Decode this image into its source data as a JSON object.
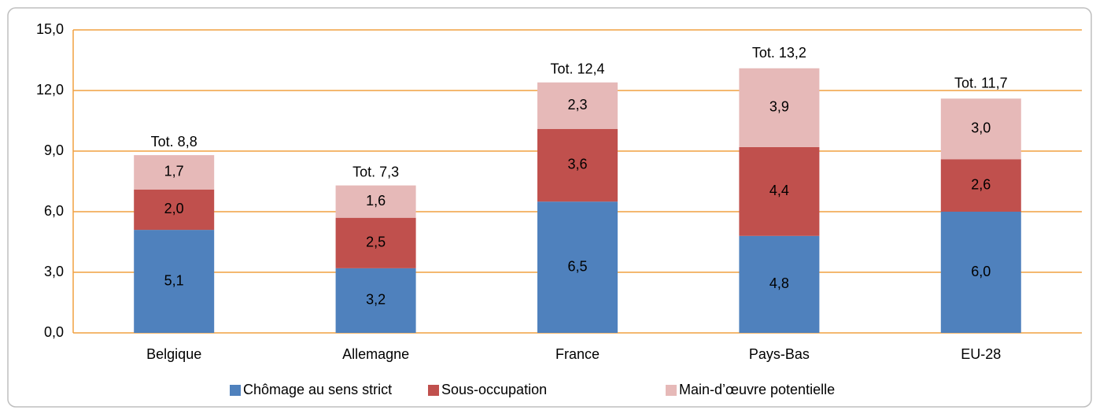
{
  "chart_data": {
    "type": "stacked_bar",
    "categories": [
      "Belgique",
      "Allemagne",
      "France",
      "Pays-Bas",
      "EU-28"
    ],
    "series": [
      {
        "name": "Chômage au sens strict",
        "color": "#4f81bd",
        "values": [
          5.1,
          3.2,
          6.5,
          4.8,
          6.0
        ],
        "value_labels": [
          "5,1",
          "3,2",
          "6,5",
          "4,8",
          "6,0"
        ]
      },
      {
        "name": "Sous-occupation",
        "color": "#c0504d",
        "values": [
          2.0,
          2.5,
          3.6,
          4.4,
          2.6
        ],
        "value_labels": [
          "2,0",
          "2,5",
          "3,6",
          "4,4",
          "2,6"
        ]
      },
      {
        "name": "Main-d’œuvre potentielle",
        "color": "#e6b9b8",
        "values": [
          1.7,
          1.6,
          2.3,
          3.9,
          3.0
        ],
        "value_labels": [
          "1,7",
          "1,6",
          "2,3",
          "3,9",
          "3,0"
        ]
      }
    ],
    "totals": [
      {
        "value": 8.8,
        "label": "Tot. 8,8"
      },
      {
        "value": 7.3,
        "label": "Tot. 7,3"
      },
      {
        "value": 12.4,
        "label": "Tot. 12,4"
      },
      {
        "value": 13.2,
        "label": "Tot. 13,2"
      },
      {
        "value": 11.7,
        "label": "Tot. 11,7"
      }
    ],
    "ylim": [
      0,
      15
    ],
    "yticks": [
      {
        "value": 0,
        "label": "0,0"
      },
      {
        "value": 3,
        "label": "3,0"
      },
      {
        "value": 6,
        "label": "6,0"
      },
      {
        "value": 9,
        "label": "9,0"
      },
      {
        "value": 12,
        "label": "12,0"
      },
      {
        "value": 15,
        "label": "15,0"
      }
    ],
    "grid": true,
    "grid_color": "#f0a040",
    "legend": "bottom"
  }
}
